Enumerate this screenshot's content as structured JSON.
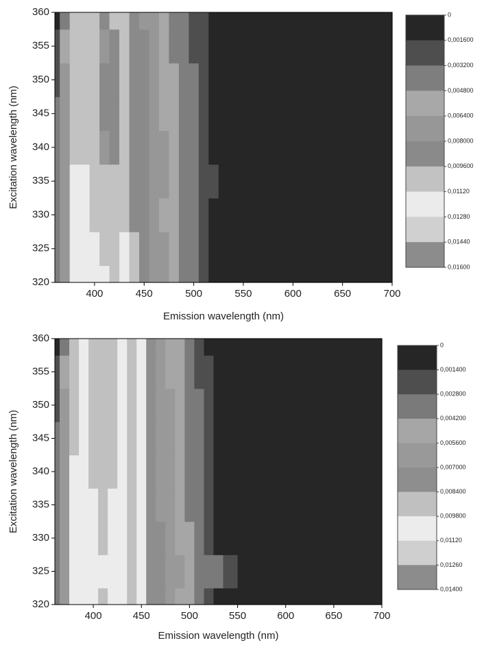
{
  "chart_data": [
    {
      "type": "contour",
      "x_label": "Emission wavelength (nm)",
      "y_label": "Excitation wavelength (nm)",
      "x": [
        360,
        370,
        380,
        390,
        400,
        410,
        420,
        430,
        440,
        450,
        460,
        470,
        480,
        490,
        500,
        510,
        520,
        530,
        540,
        560,
        600,
        650,
        700
      ],
      "y": [
        320,
        325,
        330,
        335,
        340,
        345,
        350,
        355,
        360
      ],
      "z": [
        [
          0.004,
          0.008,
          0.0118,
          0.0122,
          0.0118,
          0.0115,
          0.011,
          0.0115,
          0.01,
          0.0088,
          0.0075,
          0.0066,
          0.0052,
          0.0046,
          0.0036,
          0.0026,
          0.0016,
          0.0006,
          0,
          0,
          0,
          0,
          0
        ],
        [
          0.004,
          0.008,
          0.0118,
          0.012,
          0.0116,
          0.0112,
          0.0108,
          0.0114,
          0.0098,
          0.0088,
          0.0074,
          0.0066,
          0.0052,
          0.0046,
          0.0036,
          0.0026,
          0.0016,
          0.0006,
          0,
          0,
          0,
          0,
          0
        ],
        [
          0.004,
          0.008,
          0.0116,
          0.0118,
          0.0112,
          0.0108,
          0.0106,
          0.0112,
          0.0096,
          0.0086,
          0.0074,
          0.0064,
          0.005,
          0.0046,
          0.0036,
          0.0026,
          0.0016,
          0.0006,
          0,
          0,
          0,
          0,
          0
        ],
        [
          0.004,
          0.008,
          0.0114,
          0.0116,
          0.0108,
          0.01,
          0.0104,
          0.0112,
          0.0096,
          0.0086,
          0.0076,
          0.0068,
          0.0054,
          0.0048,
          0.004,
          0.003,
          0.002,
          0.0008,
          0,
          0,
          0,
          0,
          0
        ],
        [
          0.004,
          0.008,
          0.0112,
          0.0112,
          0.01,
          0.0078,
          0.0094,
          0.0112,
          0.0094,
          0.0086,
          0.0074,
          0.0066,
          0.0052,
          0.0046,
          0.0036,
          0.0026,
          0.0016,
          0.0006,
          0,
          0,
          0,
          0,
          0
        ],
        [
          0.004,
          0.008,
          0.0112,
          0.011,
          0.0098,
          0.0082,
          0.0094,
          0.011,
          0.0094,
          0.0084,
          0.0072,
          0.0064,
          0.005,
          0.0044,
          0.0034,
          0.0024,
          0.0014,
          0.0004,
          0,
          0,
          0,
          0,
          0
        ],
        [
          0.003,
          0.007,
          0.011,
          0.011,
          0.01,
          0.009,
          0.0096,
          0.011,
          0.0092,
          0.0084,
          0.0072,
          0.0064,
          0.005,
          0.0044,
          0.0034,
          0.0024,
          0.0014,
          0.0004,
          0,
          0,
          0,
          0,
          0
        ],
        [
          0.002,
          0.006,
          0.0108,
          0.0108,
          0.01,
          0.008,
          0.0094,
          0.0108,
          0.009,
          0.0082,
          0.007,
          0.0062,
          0.0048,
          0.0042,
          0.0032,
          0.0022,
          0.0012,
          0.0003,
          0,
          0,
          0,
          0,
          0
        ],
        [
          0.0005,
          0.004,
          0.0104,
          0.0106,
          0.01,
          0.0094,
          0.0098,
          0.0106,
          0.009,
          0.008,
          0.0068,
          0.006,
          0.0046,
          0.004,
          0.003,
          0.002,
          0.001,
          0.0002,
          0,
          0,
          0,
          0,
          0
        ]
      ],
      "xlim": [
        360,
        700
      ],
      "ylim": [
        320,
        360
      ],
      "xticks": [
        400,
        450,
        500,
        550,
        600,
        650,
        700
      ],
      "yticks": [
        320,
        325,
        330,
        335,
        340,
        345,
        350,
        355,
        360
      ],
      "colorbar": {
        "ticks": [
          0,
          {
            "value": 0.0016,
            "label": "0,001600"
          },
          {
            "value": 0.0032,
            "label": "0,003200"
          },
          {
            "value": 0.0048,
            "label": "0,004800"
          },
          {
            "value": 0.0064,
            "label": "0,006400"
          },
          {
            "value": 0.008,
            "label": "0,008000"
          },
          {
            "value": 0.0096,
            "label": "0,009600"
          },
          {
            "value": 0.0112,
            "label": "0,01120"
          },
          {
            "value": 0.0128,
            "label": "0,01280"
          },
          {
            "value": 0.0144,
            "label": "0,01440"
          },
          {
            "value": 0.016,
            "label": "0,01600"
          }
        ],
        "colors": [
          "#262626",
          "#4e4e4e",
          "#7e7e7e",
          "#a8a8a8",
          "#979797",
          "#8a8a8a",
          "#c2c2c2",
          "#ebebeb",
          "#d0d0d0",
          "#8c8c8c"
        ]
      }
    },
    {
      "type": "contour",
      "x_label": "Emission wavelength (nm)",
      "y_label": "Excitation wavelength (nm)",
      "x": [
        360,
        370,
        380,
        390,
        400,
        410,
        420,
        430,
        440,
        450,
        460,
        470,
        480,
        490,
        500,
        510,
        520,
        530,
        540,
        560,
        600,
        650,
        700
      ],
      "y": [
        320,
        325,
        330,
        335,
        340,
        345,
        350,
        355,
        360
      ],
      "z": [
        [
          0.003,
          0.007,
          0.0102,
          0.0106,
          0.0102,
          0.0098,
          0.0102,
          0.0106,
          0.0094,
          0.0106,
          0.0082,
          0.0072,
          0.0062,
          0.0054,
          0.0044,
          0.0034,
          0.0022,
          0.001,
          0,
          0,
          0,
          0,
          0
        ],
        [
          0.003,
          0.007,
          0.0102,
          0.0108,
          0.0104,
          0.01,
          0.0104,
          0.0108,
          0.0096,
          0.0108,
          0.0084,
          0.0074,
          0.0066,
          0.0058,
          0.005,
          0.0042,
          0.0036,
          0.003,
          0.0022,
          0.0012,
          0,
          0,
          0
        ],
        [
          0.003,
          0.007,
          0.01,
          0.0106,
          0.0102,
          0.0094,
          0.0102,
          0.0106,
          0.0094,
          0.0106,
          0.0082,
          0.0072,
          0.0062,
          0.0054,
          0.0046,
          0.0036,
          0.0026,
          0.0014,
          0.0004,
          0,
          0,
          0,
          0
        ],
        [
          0.003,
          0.007,
          0.01,
          0.0104,
          0.01,
          0.009,
          0.01,
          0.0104,
          0.0092,
          0.0104,
          0.008,
          0.007,
          0.006,
          0.0052,
          0.0042,
          0.0032,
          0.002,
          0.0008,
          0,
          0,
          0,
          0,
          0
        ],
        [
          0.003,
          0.007,
          0.01,
          0.0104,
          0.0098,
          0.0086,
          0.0098,
          0.0104,
          0.009,
          0.0104,
          0.008,
          0.007,
          0.006,
          0.0052,
          0.0042,
          0.0032,
          0.002,
          0.0008,
          0,
          0,
          0,
          0,
          0
        ],
        [
          0.003,
          0.007,
          0.0098,
          0.0102,
          0.0098,
          0.0088,
          0.0098,
          0.0102,
          0.009,
          0.0104,
          0.0078,
          0.0068,
          0.0058,
          0.005,
          0.004,
          0.003,
          0.0018,
          0.0006,
          0,
          0,
          0,
          0,
          0
        ],
        [
          0.0025,
          0.0065,
          0.0098,
          0.0102,
          0.0096,
          0.009,
          0.0098,
          0.0102,
          0.0088,
          0.0102,
          0.0078,
          0.0068,
          0.0058,
          0.005,
          0.004,
          0.003,
          0.0018,
          0.0006,
          0,
          0,
          0,
          0,
          0
        ],
        [
          0.0015,
          0.0055,
          0.0096,
          0.01,
          0.0094,
          0.0092,
          0.0096,
          0.01,
          0.0088,
          0.0102,
          0.0076,
          0.0066,
          0.0056,
          0.0048,
          0.0038,
          0.0028,
          0.0016,
          0.0005,
          0,
          0,
          0,
          0,
          0
        ],
        [
          0.0004,
          0.0035,
          0.0092,
          0.01,
          0.0094,
          0.0094,
          0.0098,
          0.01,
          0.0086,
          0.01,
          0.0074,
          0.0064,
          0.0054,
          0.0046,
          0.0036,
          0.0026,
          0.0014,
          0.0004,
          0,
          0,
          0,
          0,
          0
        ]
      ],
      "xlim": [
        360,
        700
      ],
      "ylim": [
        320,
        360
      ],
      "xticks": [
        400,
        450,
        500,
        550,
        600,
        650,
        700
      ],
      "yticks": [
        320,
        325,
        330,
        335,
        340,
        345,
        350,
        355,
        360
      ],
      "colorbar": {
        "ticks": [
          0,
          {
            "value": 0.0014,
            "label": "0,001400"
          },
          {
            "value": 0.0028,
            "label": "0,002800"
          },
          {
            "value": 0.0042,
            "label": "0,004200"
          },
          {
            "value": 0.0056,
            "label": "0,005600"
          },
          {
            "value": 0.007,
            "label": "0,007000"
          },
          {
            "value": 0.0084,
            "label": "0,008400"
          },
          {
            "value": 0.0098,
            "label": "0,009800"
          },
          {
            "value": 0.0112,
            "label": "0,01120"
          },
          {
            "value": 0.0126,
            "label": "0,01260"
          },
          {
            "value": 0.014,
            "label": "0,01400"
          }
        ],
        "colors": [
          "#262626",
          "#4e4e4e",
          "#7a7a7a",
          "#a6a6a6",
          "#999999",
          "#8e8e8e",
          "#c0c0c0",
          "#ececec",
          "#cfcfcf",
          "#8c8c8c"
        ]
      }
    }
  ]
}
